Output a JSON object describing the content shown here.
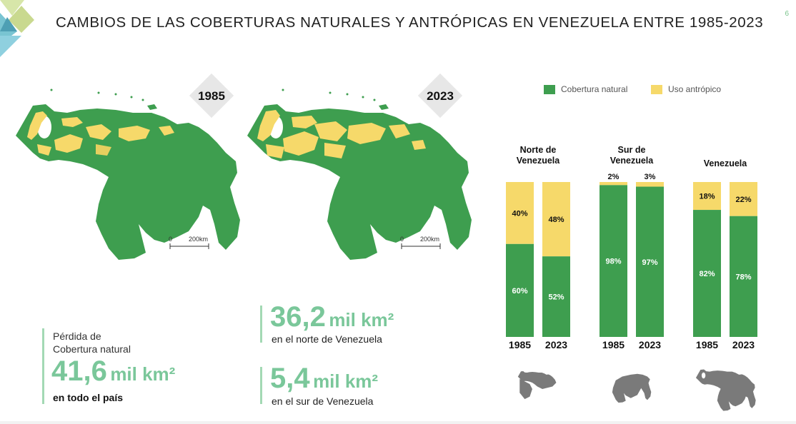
{
  "page": {
    "title": "CAMBIOS DE LAS COBERTURAS NATURALES Y ANTRÓPICAS EN VENEZUELA ENTRE 1985-2023",
    "page_number": "6"
  },
  "maps": [
    {
      "year": "1985",
      "scale_start": "0",
      "scale_end": "200km"
    },
    {
      "year": "2023",
      "scale_start": "0",
      "scale_end": "200km"
    }
  ],
  "legend": [
    {
      "label": "Cobertura natural",
      "color": "#3e9e4f"
    },
    {
      "label": "Uso antrópico",
      "color": "#f6d96a"
    }
  ],
  "chart_data": {
    "type": "bar",
    "stacked": true,
    "groups": [
      {
        "name": "Norte de Venezuela",
        "title_lines": [
          "Norte de",
          "Venezuela"
        ],
        "bars": [
          {
            "year": "1985",
            "natural": 60,
            "antropico": 40,
            "natural_label": "60%",
            "antropico_label": "40%"
          },
          {
            "year": "2023",
            "natural": 52,
            "antropico": 48,
            "natural_label": "52%",
            "antropico_label": "48%"
          }
        ]
      },
      {
        "name": "Sur de Venezuela",
        "title_lines": [
          "Sur de",
          "Venezuela"
        ],
        "bars": [
          {
            "year": "1985",
            "natural": 98,
            "antropico": 2,
            "natural_label": "98%",
            "antropico_label": "2%"
          },
          {
            "year": "2023",
            "natural": 97,
            "antropico": 3,
            "natural_label": "97%",
            "antropico_label": "3%"
          }
        ]
      },
      {
        "name": "Venezuela",
        "title_lines": [
          "Venezuela"
        ],
        "bars": [
          {
            "year": "1985",
            "natural": 82,
            "antropico": 18,
            "natural_label": "82%",
            "antropico_label": "18%"
          },
          {
            "year": "2023",
            "natural": 78,
            "antropico": 22,
            "natural_label": "78%",
            "antropico_label": "22%"
          }
        ]
      }
    ],
    "series": [
      {
        "name": "Cobertura natural"
      },
      {
        "name": "Uso antrópico"
      }
    ],
    "ylim": [
      0,
      100
    ],
    "colors": {
      "natural": "#3e9e4f",
      "antropico": "#f6d96a",
      "region_icon": "#7a7a7a"
    }
  },
  "stats": {
    "total": {
      "label_line1": "Pérdida de",
      "label_line2": "Cobertura natural",
      "number": "41,6",
      "unit": "mil km²",
      "sub": "en todo el país"
    },
    "north": {
      "number": "36,2",
      "unit": "mil km²",
      "sub": "en el norte de Venezuela"
    },
    "south": {
      "number": "5,4",
      "unit": "mil km²",
      "sub": "en el sur de Venezuela"
    }
  },
  "colors": {
    "accent_green": "#7ac79a",
    "map_green": "#3e9e4f",
    "map_yellow": "#f6d96a"
  }
}
